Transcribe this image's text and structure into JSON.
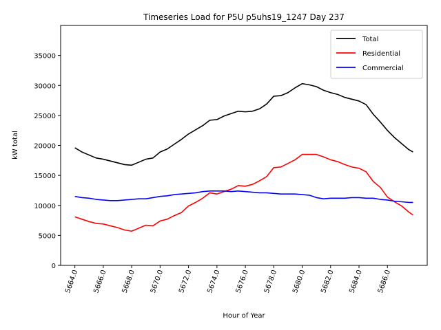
{
  "chart_data": {
    "type": "line",
    "title": "Timeseries Load for P5U p5uhs19_1247  Day 237",
    "xlabel": "Hour of Year",
    "ylabel": "kW total",
    "xlim": [
      5663.0,
      5688.8
    ],
    "ylim": [
      0,
      40000
    ],
    "xticks": [
      5664,
      5666,
      5668,
      5670,
      5672,
      5674,
      5676,
      5678,
      5680,
      5682,
      5684,
      5686
    ],
    "xtick_labels": [
      "5664.0",
      "5666.0",
      "5668.0",
      "5670.0",
      "5672.0",
      "5674.0",
      "5676.0",
      "5678.0",
      "5680.0",
      "5682.0",
      "5684.0",
      "5686.0"
    ],
    "yticks": [
      0,
      5000,
      10000,
      15000,
      20000,
      25000,
      30000,
      35000
    ],
    "ytick_labels": [
      "0",
      "5000",
      "10000",
      "15000",
      "20000",
      "25000",
      "30000",
      "35000"
    ],
    "legend_position": "top-right",
    "x": [
      5664.0,
      5664.5,
      5665.0,
      5665.5,
      5666.0,
      5666.5,
      5667.0,
      5667.5,
      5668.0,
      5668.5,
      5669.0,
      5669.5,
      5670.0,
      5670.5,
      5671.0,
      5671.5,
      5672.0,
      5672.5,
      5673.0,
      5673.5,
      5674.0,
      5674.5,
      5675.0,
      5675.5,
      5676.0,
      5676.5,
      5677.0,
      5677.5,
      5678.0,
      5678.5,
      5679.0,
      5679.5,
      5680.0,
      5680.5,
      5681.0,
      5681.5,
      5682.0,
      5682.5,
      5683.0,
      5683.5,
      5684.0,
      5684.5,
      5685.0,
      5685.5,
      5686.0,
      5686.5,
      5687.0,
      5687.5,
      5687.8
    ],
    "series": [
      {
        "name": "Total",
        "color": "#000000",
        "values": [
          19600,
          18900,
          18400,
          17900,
          17700,
          17400,
          17100,
          16800,
          16700,
          17200,
          17700,
          17900,
          18900,
          19400,
          20200,
          21000,
          21900,
          22600,
          23300,
          24200,
          24300,
          24900,
          25300,
          25700,
          25600,
          25700,
          26100,
          26900,
          28200,
          28300,
          28800,
          29600,
          30300,
          30100,
          29800,
          29200,
          28800,
          28500,
          28000,
          27700,
          27400,
          26800,
          25200,
          23900,
          22500,
          21300,
          20300,
          19300,
          18900
        ]
      },
      {
        "name": "Residential",
        "color": "#ff0000",
        "values": [
          8100,
          7700,
          7300,
          7000,
          6900,
          6600,
          6300,
          5900,
          5700,
          6200,
          6700,
          6600,
          7400,
          7700,
          8300,
          8800,
          9900,
          10500,
          11200,
          12100,
          11900,
          12300,
          12700,
          13300,
          13200,
          13500,
          14100,
          14800,
          16300,
          16400,
          17000,
          17600,
          18500,
          18500,
          18500,
          18100,
          17600,
          17300,
          16800,
          16400,
          16200,
          15600,
          14000,
          13000,
          11400,
          10600,
          9900,
          8900,
          8400
        ]
      },
      {
        "name": "Commercial",
        "color": "#0000ff",
        "values": [
          11500,
          11300,
          11200,
          11000,
          10900,
          10800,
          10800,
          10900,
          11000,
          11100,
          11100,
          11300,
          11500,
          11600,
          11800,
          11900,
          12000,
          12100,
          12300,
          12400,
          12400,
          12400,
          12300,
          12400,
          12300,
          12200,
          12100,
          12100,
          12000,
          11900,
          11900,
          11900,
          11800,
          11700,
          11300,
          11100,
          11200,
          11200,
          11200,
          11300,
          11300,
          11200,
          11200,
          11000,
          10900,
          10700,
          10600,
          10500,
          10500
        ]
      }
    ]
  }
}
